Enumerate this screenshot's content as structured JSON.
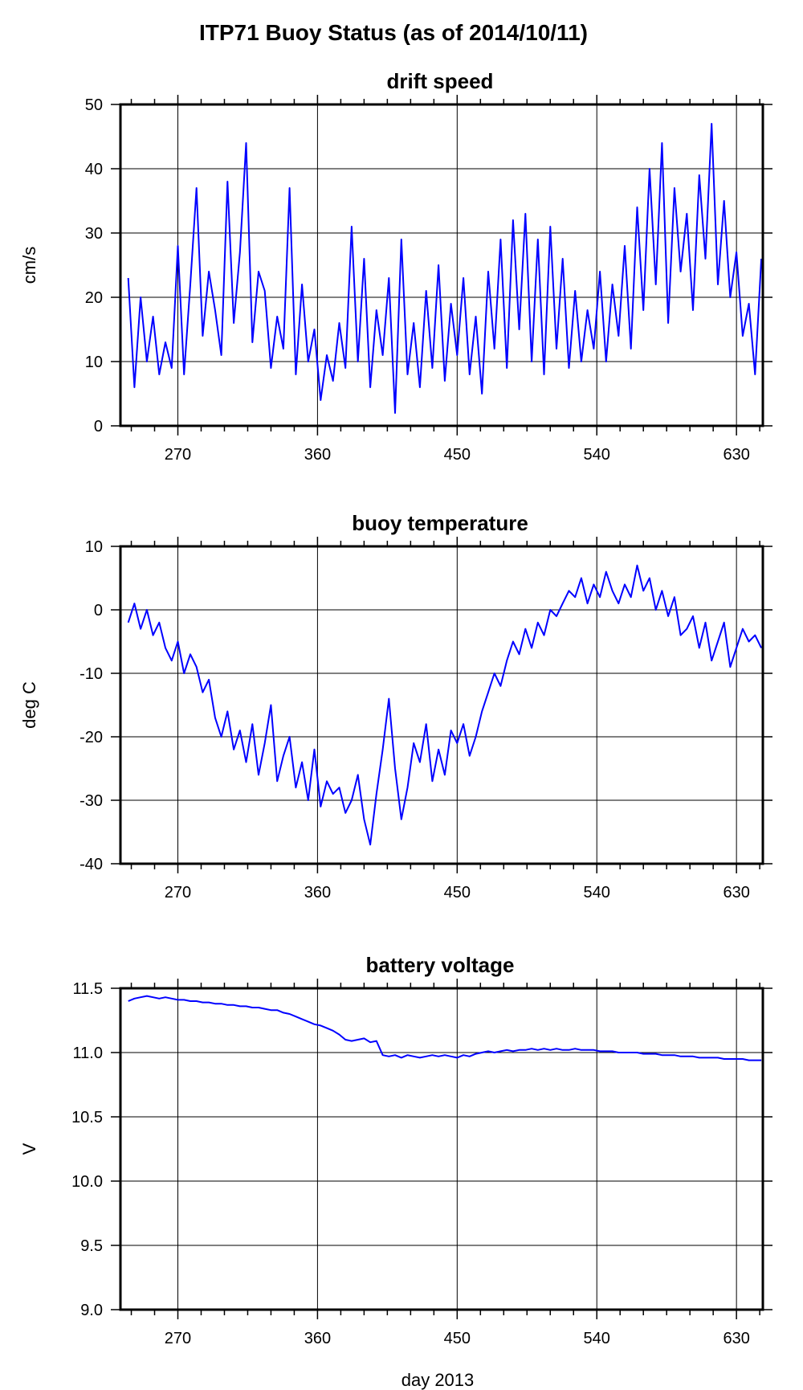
{
  "figure": {
    "title": "ITP71 Buoy Status (as of 2014/10/11)",
    "series_color": "#0000ff"
  },
  "chart_data": [
    {
      "type": "line",
      "title": "drift speed",
      "xlabel": "",
      "ylabel": "cm/s",
      "xlim": [
        233,
        647
      ],
      "ylim": [
        0,
        50
      ],
      "xticks": [
        270,
        360,
        450,
        540,
        630
      ],
      "yticks": [
        0,
        10,
        20,
        30,
        40,
        50
      ],
      "ytick_labels": [
        "0",
        "10",
        "20",
        "30",
        "40",
        "50"
      ],
      "grid": true,
      "series": [
        {
          "color": "#0000ff",
          "x": [
            238,
            242,
            246,
            250,
            254,
            258,
            262,
            266,
            270,
            274,
            278,
            282,
            286,
            290,
            294,
            298,
            302,
            306,
            310,
            314,
            318,
            322,
            326,
            330,
            334,
            338,
            342,
            346,
            350,
            354,
            358,
            362,
            366,
            370,
            374,
            378,
            382,
            386,
            390,
            394,
            398,
            402,
            406,
            410,
            414,
            418,
            422,
            426,
            430,
            434,
            438,
            442,
            446,
            450,
            454,
            458,
            462,
            466,
            470,
            474,
            478,
            482,
            486,
            490,
            494,
            498,
            502,
            506,
            510,
            514,
            518,
            522,
            526,
            530,
            534,
            538,
            542,
            546,
            550,
            554,
            558,
            562,
            566,
            570,
            574,
            578,
            582,
            586,
            590,
            594,
            598,
            602,
            606,
            610,
            614,
            618,
            622,
            626,
            630,
            634,
            638,
            642,
            646
          ],
          "y": [
            23,
            6,
            20,
            10,
            17,
            8,
            13,
            9,
            28,
            8,
            22,
            37,
            14,
            24,
            18,
            11,
            38,
            16,
            27,
            44,
            13,
            24,
            21,
            9,
            17,
            12,
            37,
            8,
            22,
            10,
            15,
            4,
            11,
            7,
            16,
            9,
            31,
            10,
            26,
            6,
            18,
            11,
            23,
            2,
            29,
            8,
            16,
            6,
            21,
            9,
            25,
            7,
            19,
            11,
            23,
            8,
            17,
            5,
            24,
            12,
            29,
            9,
            32,
            15,
            33,
            10,
            29,
            8,
            31,
            12,
            26,
            9,
            21,
            10,
            18,
            12,
            24,
            10,
            22,
            14,
            28,
            12,
            34,
            18,
            40,
            22,
            44,
            16,
            37,
            24,
            33,
            18,
            39,
            26,
            47,
            22,
            35,
            20,
            27,
            14,
            19,
            8,
            26
          ]
        }
      ]
    },
    {
      "type": "line",
      "title": "buoy temperature",
      "xlabel": "",
      "ylabel": "deg C",
      "xlim": [
        233,
        647
      ],
      "ylim": [
        -40,
        10
      ],
      "xticks": [
        270,
        360,
        450,
        540,
        630
      ],
      "yticks": [
        -40,
        -30,
        -20,
        -10,
        0,
        10
      ],
      "ytick_labels": [
        "-40",
        "-30",
        "-20",
        "-10",
        "0",
        "10"
      ],
      "grid": true,
      "series": [
        {
          "color": "#0000ff",
          "x": [
            238,
            242,
            246,
            250,
            254,
            258,
            262,
            266,
            270,
            274,
            278,
            282,
            286,
            290,
            294,
            298,
            302,
            306,
            310,
            314,
            318,
            322,
            326,
            330,
            334,
            338,
            342,
            346,
            350,
            354,
            358,
            362,
            366,
            370,
            374,
            378,
            382,
            386,
            390,
            394,
            398,
            402,
            406,
            410,
            414,
            418,
            422,
            426,
            430,
            434,
            438,
            442,
            446,
            450,
            454,
            458,
            462,
            466,
            470,
            474,
            478,
            482,
            486,
            490,
            494,
            498,
            502,
            506,
            510,
            514,
            518,
            522,
            526,
            530,
            534,
            538,
            542,
            546,
            550,
            554,
            558,
            562,
            566,
            570,
            574,
            578,
            582,
            586,
            590,
            594,
            598,
            602,
            606,
            610,
            614,
            618,
            622,
            626,
            630,
            634,
            638,
            642,
            646
          ],
          "y": [
            -2,
            1,
            -3,
            0,
            -4,
            -2,
            -6,
            -8,
            -5,
            -10,
            -7,
            -9,
            -13,
            -11,
            -17,
            -20,
            -16,
            -22,
            -19,
            -24,
            -18,
            -26,
            -21,
            -15,
            -27,
            -23,
            -20,
            -28,
            -24,
            -30,
            -22,
            -31,
            -27,
            -29,
            -28,
            -32,
            -30,
            -26,
            -33,
            -37,
            -29,
            -22,
            -14,
            -25,
            -33,
            -28,
            -21,
            -24,
            -18,
            -27,
            -22,
            -26,
            -19,
            -21,
            -18,
            -23,
            -20,
            -16,
            -13,
            -10,
            -12,
            -8,
            -5,
            -7,
            -3,
            -6,
            -2,
            -4,
            0,
            -1,
            1,
            3,
            2,
            5,
            1,
            4,
            2,
            6,
            3,
            1,
            4,
            2,
            7,
            3,
            5,
            0,
            3,
            -1,
            2,
            -4,
            -3,
            -1,
            -6,
            -2,
            -8,
            -5,
            -2,
            -9,
            -6,
            -3,
            -5,
            -4,
            -6
          ]
        }
      ]
    },
    {
      "type": "line",
      "title": "battery voltage",
      "xlabel": "day 2013",
      "ylabel": "V",
      "xlim": [
        233,
        647
      ],
      "ylim": [
        9.0,
        11.5
      ],
      "xticks": [
        270,
        360,
        450,
        540,
        630
      ],
      "yticks": [
        9.0,
        9.5,
        10.0,
        10.5,
        11.0,
        11.5
      ],
      "ytick_labels": [
        "9.0",
        "9.5",
        "10.0",
        "10.5",
        "11.0",
        "11.5"
      ],
      "grid": true,
      "series": [
        {
          "color": "#0000ff",
          "x": [
            238,
            242,
            246,
            250,
            254,
            258,
            262,
            266,
            270,
            274,
            278,
            282,
            286,
            290,
            294,
            298,
            302,
            306,
            310,
            314,
            318,
            322,
            326,
            330,
            334,
            338,
            342,
            346,
            350,
            354,
            358,
            362,
            366,
            370,
            374,
            378,
            382,
            386,
            390,
            394,
            398,
            402,
            406,
            410,
            414,
            418,
            422,
            426,
            430,
            434,
            438,
            442,
            446,
            450,
            454,
            458,
            462,
            466,
            470,
            474,
            478,
            482,
            486,
            490,
            494,
            498,
            502,
            506,
            510,
            514,
            518,
            522,
            526,
            530,
            534,
            538,
            542,
            546,
            550,
            554,
            558,
            562,
            566,
            570,
            574,
            578,
            582,
            586,
            590,
            594,
            598,
            602,
            606,
            610,
            614,
            618,
            622,
            626,
            630,
            634,
            638,
            642,
            646
          ],
          "y": [
            11.4,
            11.42,
            11.43,
            11.44,
            11.43,
            11.42,
            11.43,
            11.42,
            11.41,
            11.41,
            11.4,
            11.4,
            11.39,
            11.39,
            11.38,
            11.38,
            11.37,
            11.37,
            11.36,
            11.36,
            11.35,
            11.35,
            11.34,
            11.33,
            11.33,
            11.31,
            11.3,
            11.28,
            11.26,
            11.24,
            11.22,
            11.21,
            11.19,
            11.17,
            11.14,
            11.1,
            11.09,
            11.1,
            11.11,
            11.08,
            11.09,
            10.98,
            10.97,
            10.98,
            10.96,
            10.98,
            10.97,
            10.96,
            10.97,
            10.98,
            10.97,
            10.98,
            10.97,
            10.96,
            10.98,
            10.97,
            10.99,
            11.0,
            11.01,
            11.0,
            11.01,
            11.02,
            11.01,
            11.02,
            11.02,
            11.03,
            11.02,
            11.03,
            11.02,
            11.03,
            11.02,
            11.02,
            11.03,
            11.02,
            11.02,
            11.02,
            11.01,
            11.01,
            11.01,
            11.0,
            11.0,
            11.0,
            11.0,
            10.99,
            10.99,
            10.99,
            10.98,
            10.98,
            10.98,
            10.97,
            10.97,
            10.97,
            10.96,
            10.96,
            10.96,
            10.96,
            10.95,
            10.95,
            10.95,
            10.95,
            10.94,
            10.94,
            10.94
          ]
        }
      ]
    }
  ]
}
